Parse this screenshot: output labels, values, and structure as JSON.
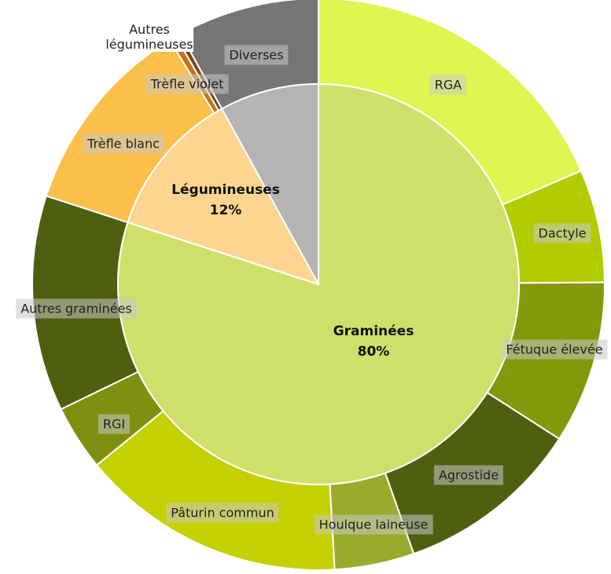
{
  "chart_data": {
    "type": "sunburst",
    "inner": {
      "categories": [
        "Graminées",
        "Légumineuses",
        null
      ],
      "values": [
        80,
        12,
        8
      ],
      "value_labels": [
        "80%",
        "12%",
        null
      ],
      "colors": [
        "#cfe06a",
        "#fdd590",
        "#b4b4b4"
      ]
    },
    "outer": {
      "categories": [
        "RGA",
        "Dactyle",
        "Fétuque élevée",
        "Agrostide",
        "Houlque laineuse",
        "Pâturin commun",
        "RGI",
        "Autres graminées",
        "Trèfle blanc",
        "Trèfle violet",
        "Autres légumineuses",
        "Diverses"
      ],
      "values": [
        18.5,
        6.4,
        9.2,
        10.5,
        4.5,
        15,
        3.7,
        12.2,
        11.3,
        0.4,
        0.3,
        8
      ],
      "colors": [
        "#dff552",
        "#b2cc00",
        "#84980c",
        "#4e6010",
        "#9aab2c",
        "#c4d000",
        "#7f8f10",
        "#4f5f10",
        "#fbbf4a",
        "#c8731a",
        "#7a4a1a",
        "#767676"
      ]
    }
  }
}
